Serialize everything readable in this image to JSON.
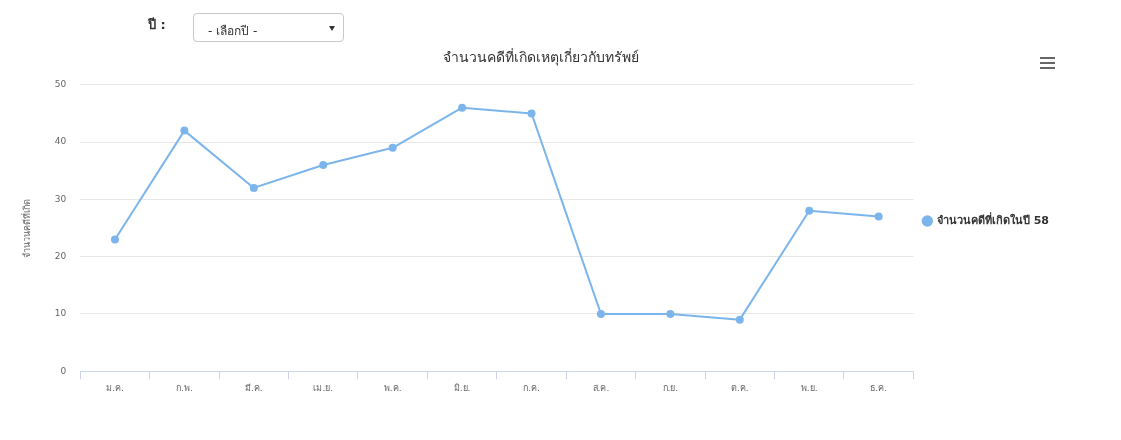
{
  "chart_data": {
    "type": "line",
    "title": "จำนวนคดีที่เกิดเหตุเกี่ยวกับทรัพย์",
    "ylabel": "จำนวนคดีที่เกิด",
    "categories": [
      "ม.ค.",
      "ก.พ.",
      "มี.ค.",
      "เม.ย.",
      "พ.ค.",
      "มิ.ย.",
      "ก.ค.",
      "ส.ค.",
      "ก.ย.",
      "ต.ค.",
      "พ.ย.",
      "ธ.ค."
    ],
    "series": [
      {
        "name": "จำนวนคดีที่เกิดในปี 58",
        "color": "#7cb5ec",
        "values": [
          23,
          42,
          32,
          36,
          39,
          46,
          45,
          10,
          10,
          9,
          28,
          27
        ]
      }
    ],
    "ylim": [
      0,
      50
    ],
    "yticks": [
      0,
      10,
      20,
      30,
      40,
      50
    ],
    "grid": "y",
    "legend": "right",
    "marker": "circle",
    "line_style": "solid",
    "annotations": [
      "ปี :",
      "- เลือกปี -"
    ]
  }
}
